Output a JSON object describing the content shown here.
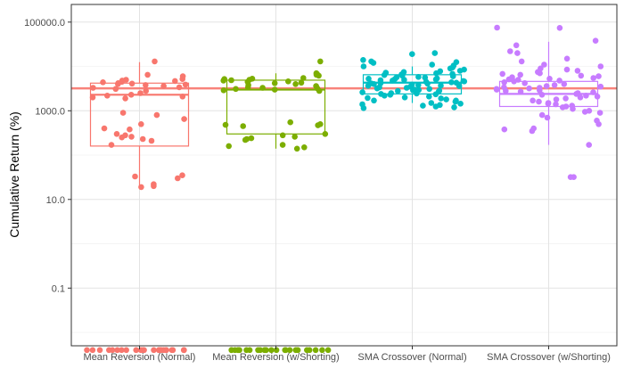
{
  "chart_data": {
    "type": "boxplot-jitter",
    "ylabel": "Cumulative Return (%)",
    "xlabel": "",
    "y_scale": "log10",
    "ylim": [
      0.005,
      250000
    ],
    "y_ticks": [
      {
        "value": 0.1,
        "label": "0.1"
      },
      {
        "value": 10,
        "label": "10.0"
      },
      {
        "value": 1000,
        "label": "1000.0"
      },
      {
        "value": 100000,
        "label": "100000.0"
      }
    ],
    "grid": true,
    "reference_line": {
      "value": 3200,
      "color": "#F8766D"
    },
    "categories": [
      "Mean Reversion (Normal)",
      "Mean Reversion (w/Shorting)",
      "SMA Crossover (Normal)",
      "SMA Crossover (w/Shorting)"
    ],
    "colors": [
      "#F8766D",
      "#7CAE00",
      "#00BFC4",
      "#C77CFF"
    ],
    "boxes": [
      {
        "whisker_low": 18,
        "q1": 160,
        "median": 2300,
        "q3": 4200,
        "whisker_high": 12500
      },
      {
        "whisker_low": 140,
        "q1": 300,
        "median": 3000,
        "q3": 4900,
        "whisker_high": 7000
      },
      {
        "whisker_low": 1500,
        "q1": 2400,
        "median": 4300,
        "q3": 6500,
        "whisker_high": 10000
      },
      {
        "whisker_low": 170,
        "q1": 1250,
        "median": 2400,
        "q3": 4600,
        "whisker_high": 36000
      }
    ],
    "points": [
      [
        0.004,
        0.004,
        0.004,
        0.004,
        0.004,
        0.004,
        0.004,
        0.004,
        0.004,
        0.004,
        0.004,
        0.004,
        0.004,
        0.004,
        0.004,
        0.004,
        0.004,
        0.004,
        0.004,
        0.004,
        0.004,
        0.004,
        0.004,
        0.004,
        0.004,
        0.004,
        13000,
        6500,
        6000,
        5200,
        5000,
        4800,
        4700,
        4500,
        4400,
        4200,
        4100,
        4000,
        3900,
        3800,
        3600,
        3400,
        3300,
        3100,
        2800,
        2500,
        2300,
        2200,
        2100,
        2000,
        1900,
        900,
        800,
        650,
        500,
        400,
        380,
        300,
        280,
        260,
        250,
        230,
        210,
        170,
        35,
        33,
        30,
        22,
        20,
        19
      ],
      [
        0.004,
        0.004,
        0.004,
        0.004,
        0.004,
        0.004,
        0.004,
        0.004,
        0.004,
        0.004,
        0.004,
        0.004,
        0.004,
        0.004,
        0.004,
        0.004,
        0.004,
        0.004,
        0.004,
        0.004,
        0.004,
        0.004,
        0.004,
        0.004,
        0.004,
        13000,
        7000,
        6800,
        6500,
        6200,
        5500,
        5300,
        5200,
        5000,
        4900,
        4800,
        4600,
        4500,
        4300,
        4200,
        4000,
        3800,
        3600,
        3400,
        3300,
        3200,
        3100,
        3000,
        2900,
        2800,
        550,
        500,
        480,
        470,
        450,
        300,
        280,
        260,
        240,
        230,
        220,
        170,
        160,
        150,
        140
      ],
      [
        20000,
        19000,
        14000,
        13000,
        12500,
        12000,
        11000,
        10500,
        10000,
        9500,
        9000,
        8500,
        8000,
        7800,
        7500,
        7200,
        7000,
        6800,
        6600,
        6400,
        6200,
        6000,
        5800,
        5700,
        5600,
        5400,
        5200,
        5100,
        5000,
        4900,
        4800,
        4700,
        4600,
        4500,
        4400,
        4300,
        4200,
        4100,
        4000,
        3900,
        3800,
        3700,
        3600,
        3500,
        3400,
        3300,
        3200,
        3100,
        3000,
        2950,
        2900,
        2850,
        2800,
        2700,
        2600,
        2500,
        2450,
        2400,
        2350,
        2300,
        2200,
        2100,
        2000,
        1950,
        1900,
        1800,
        1700,
        1600,
        1500,
        1450,
        1400,
        1350,
        1300,
        1250,
        1200,
        1150,
        1700,
        3650,
        4150,
        5300
      ],
      [
        75000,
        74000,
        38000,
        30000,
        22000,
        20000,
        15000,
        13000,
        11000,
        10000,
        9000,
        8500,
        8000,
        7500,
        7000,
        6800,
        6500,
        6200,
        6000,
        5700,
        5500,
        5300,
        5100,
        5000,
        4800,
        4600,
        4400,
        4200,
        4000,
        3800,
        3600,
        3500,
        3400,
        3300,
        3200,
        3100,
        3000,
        2900,
        2800,
        2700,
        2600,
        2500,
        2400,
        2300,
        2200,
        2100,
        2000,
        1900,
        1800,
        1700,
        1600,
        1500,
        1450,
        1400,
        1300,
        1250,
        1200,
        1100,
        1000,
        950,
        900,
        800,
        700,
        600,
        500,
        400,
        380,
        350,
        170,
        32,
        32
      ]
    ]
  }
}
